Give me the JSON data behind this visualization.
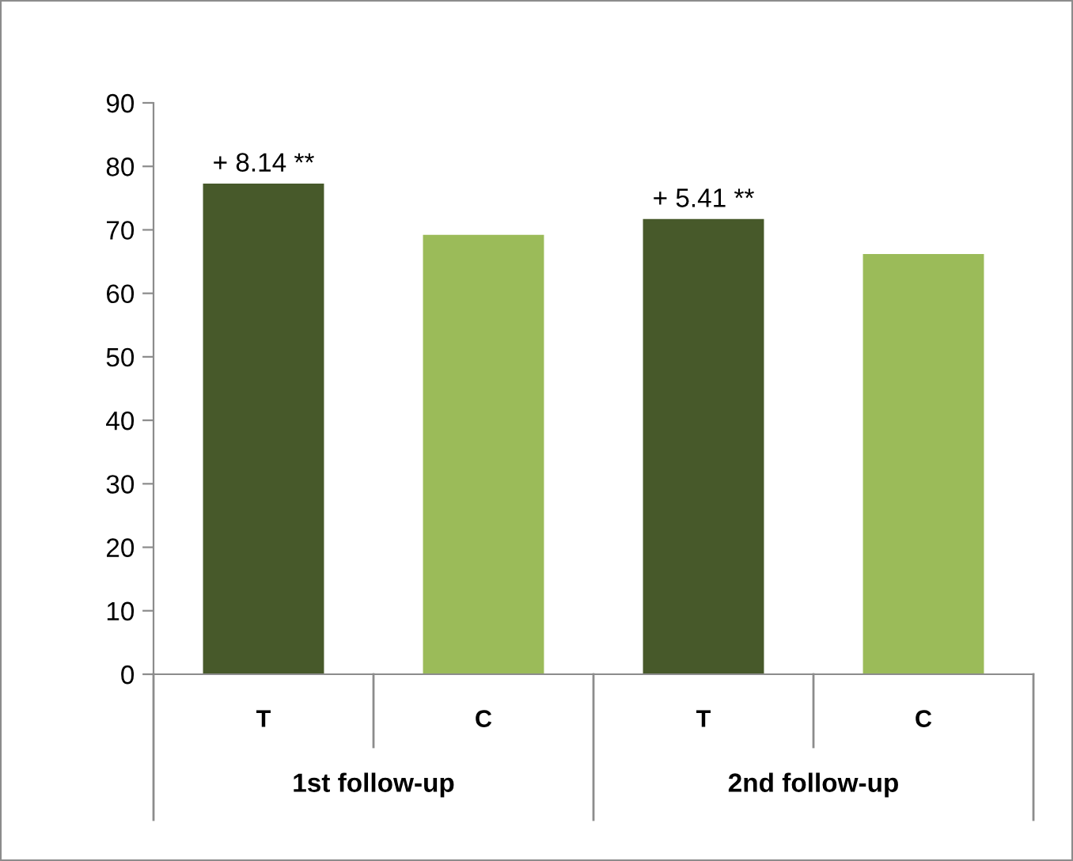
{
  "chart_data": {
    "type": "bar",
    "categories": [
      "T",
      "C",
      "T",
      "C"
    ],
    "values": [
      77.3,
      69.2,
      71.7,
      66.2
    ],
    "colors": [
      "#47592a",
      "#9bbb59",
      "#47592a",
      "#9bbb59"
    ],
    "annotations": [
      "+ 8.14 **",
      "+ 5.41 **",
      "1st follow-up",
      "2nd follow-up"
    ],
    "ylim": [
      0,
      90
    ],
    "yticks": [
      0,
      10,
      20,
      30,
      40,
      50,
      60,
      70,
      80,
      90
    ],
    "grid": false,
    "legend": false
  }
}
